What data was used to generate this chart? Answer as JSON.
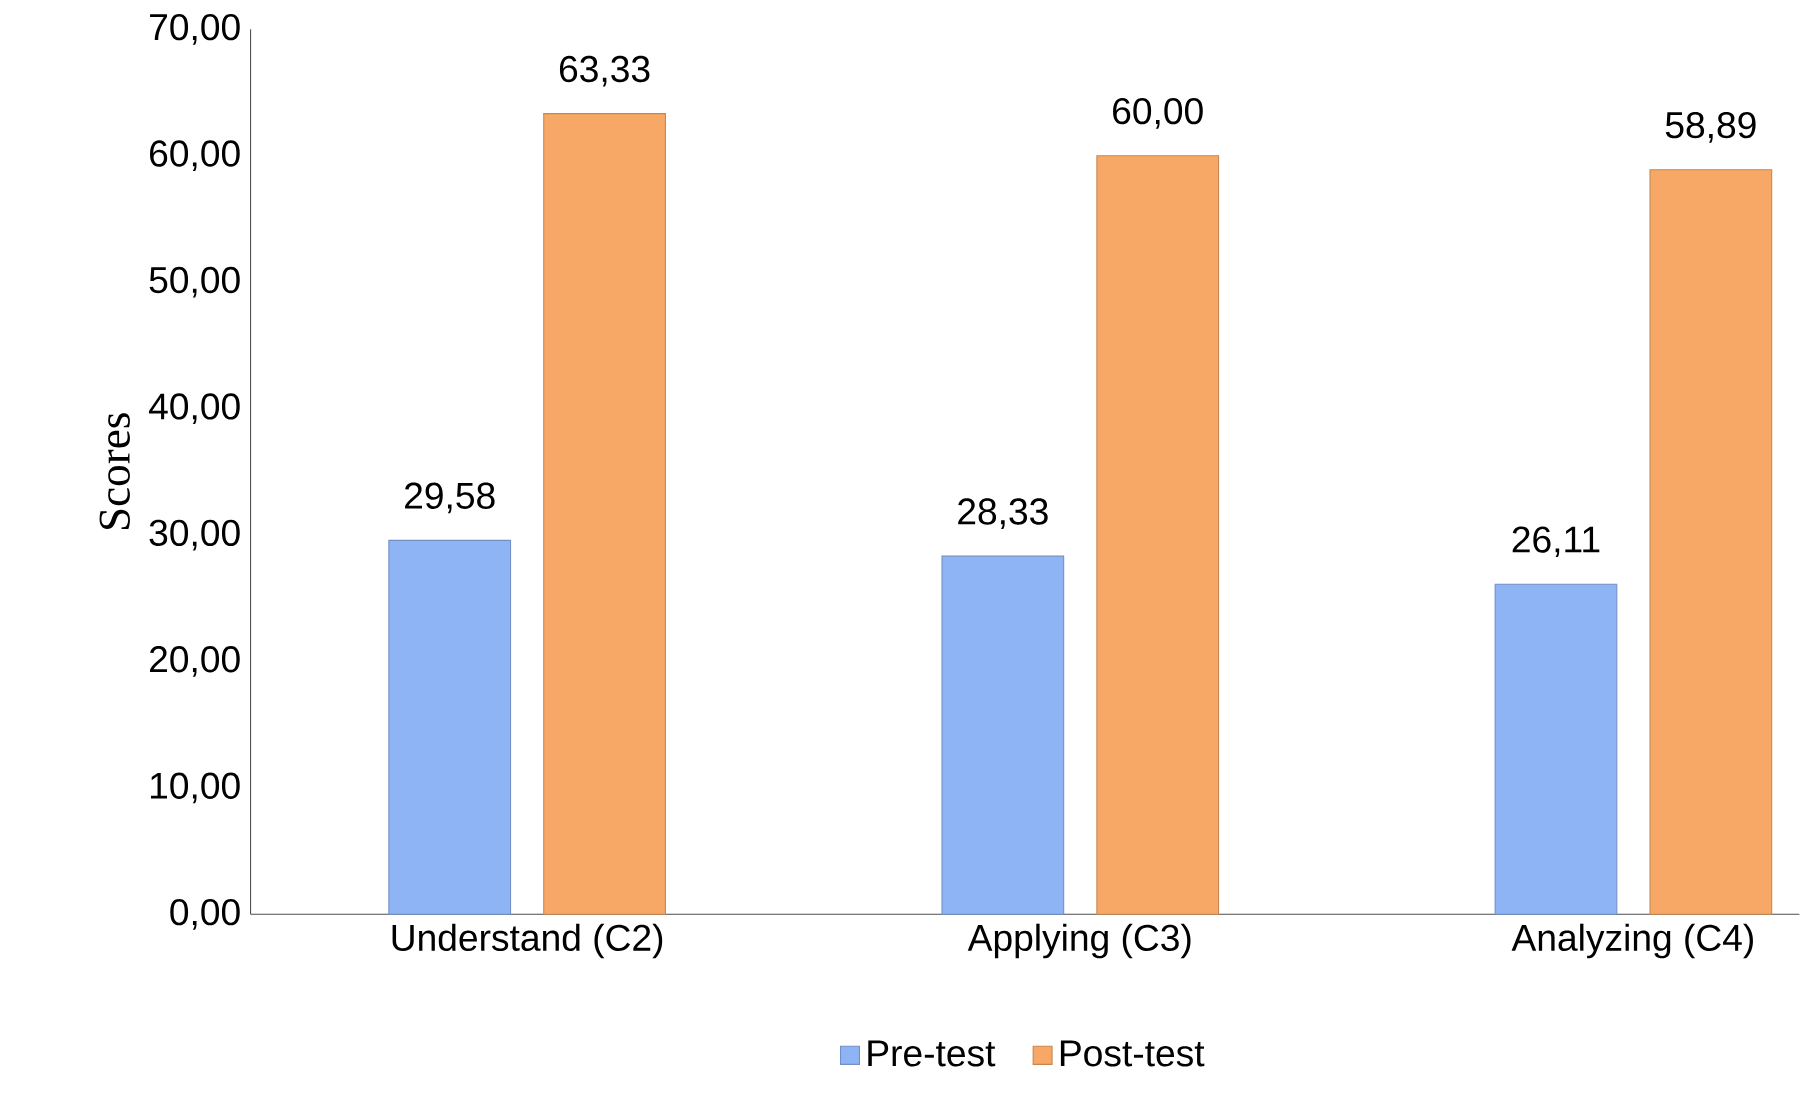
{
  "chart_data": {
    "type": "bar",
    "ylabel": "Scores",
    "categories": [
      "Understand (C2)",
      "Applying (C3)",
      "Analyzing (C4)"
    ],
    "series": [
      {
        "name": "Pre-test",
        "color": "#8fb4f5",
        "values": [
          29.58,
          28.33,
          26.11
        ],
        "value_labels": [
          "29,58",
          "28,33",
          "26,11"
        ]
      },
      {
        "name": "Post-test",
        "color": "#f7a866",
        "values": [
          63.33,
          60.0,
          58.89
        ],
        "value_labels": [
          "63,33",
          "60,00",
          "58,89"
        ]
      }
    ],
    "ylim": [
      0,
      70
    ],
    "yticks": [
      {
        "value": 0,
        "label": "0,00"
      },
      {
        "value": 10,
        "label": "10,00"
      },
      {
        "value": 20,
        "label": "20,00"
      },
      {
        "value": 30,
        "label": "30,00"
      },
      {
        "value": 40,
        "label": "40,00"
      },
      {
        "value": 50,
        "label": "50,00"
      },
      {
        "value": 60,
        "label": "60,00"
      },
      {
        "value": 70,
        "label": "70,00"
      }
    ],
    "grid": false,
    "legend": "bottom"
  }
}
